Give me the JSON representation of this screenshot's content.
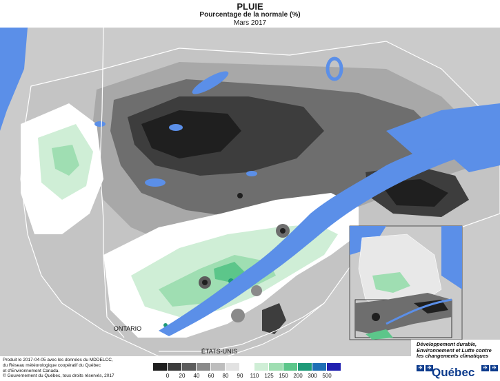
{
  "header": {
    "title": "PLUIE",
    "subtitle": "Pourcentage de la normale (%)",
    "period": "Mars 2017"
  },
  "map": {
    "labels": {
      "ontario": "ONTARIO",
      "etats_unis": "ÉTATS-UNIS"
    },
    "colors": {
      "water": "#5b8fe8",
      "land_outside": "#c8c8c8",
      "border": "#ffffff"
    }
  },
  "legend": {
    "classes": [
      {
        "color": "#1f1f1f"
      },
      {
        "color": "#3d3d3d"
      },
      {
        "color": "#5c5c5c"
      },
      {
        "color": "#8a8a8a"
      },
      {
        "color": "#bdbdbd"
      },
      {
        "color": "#e2e2e2"
      },
      {
        "color": "#ffffff"
      },
      {
        "color": "#cfeed6"
      },
      {
        "color": "#9fdeb2"
      },
      {
        "color": "#5cc68a"
      },
      {
        "color": "#1e9a78"
      },
      {
        "color": "#1e6fb5"
      },
      {
        "color": "#2020b0"
      }
    ],
    "break_labels": [
      "0",
      "20",
      "40",
      "60",
      "80",
      "90",
      "110",
      "125",
      "150",
      "200",
      "300",
      "500"
    ]
  },
  "credits": {
    "line1": "Produit le 2017-04-05 avec les données du MDDELCC,",
    "line2": "du Réseau météorologique coopératif du Québec",
    "line3": "et d'Environnement Canada.",
    "copyright": "© Gouvernement du Québec, tous droits réservés, 2017"
  },
  "government": {
    "department": "Développement durable, Environnement et Lutte contre les changements climatiques",
    "brand": "Québec"
  }
}
